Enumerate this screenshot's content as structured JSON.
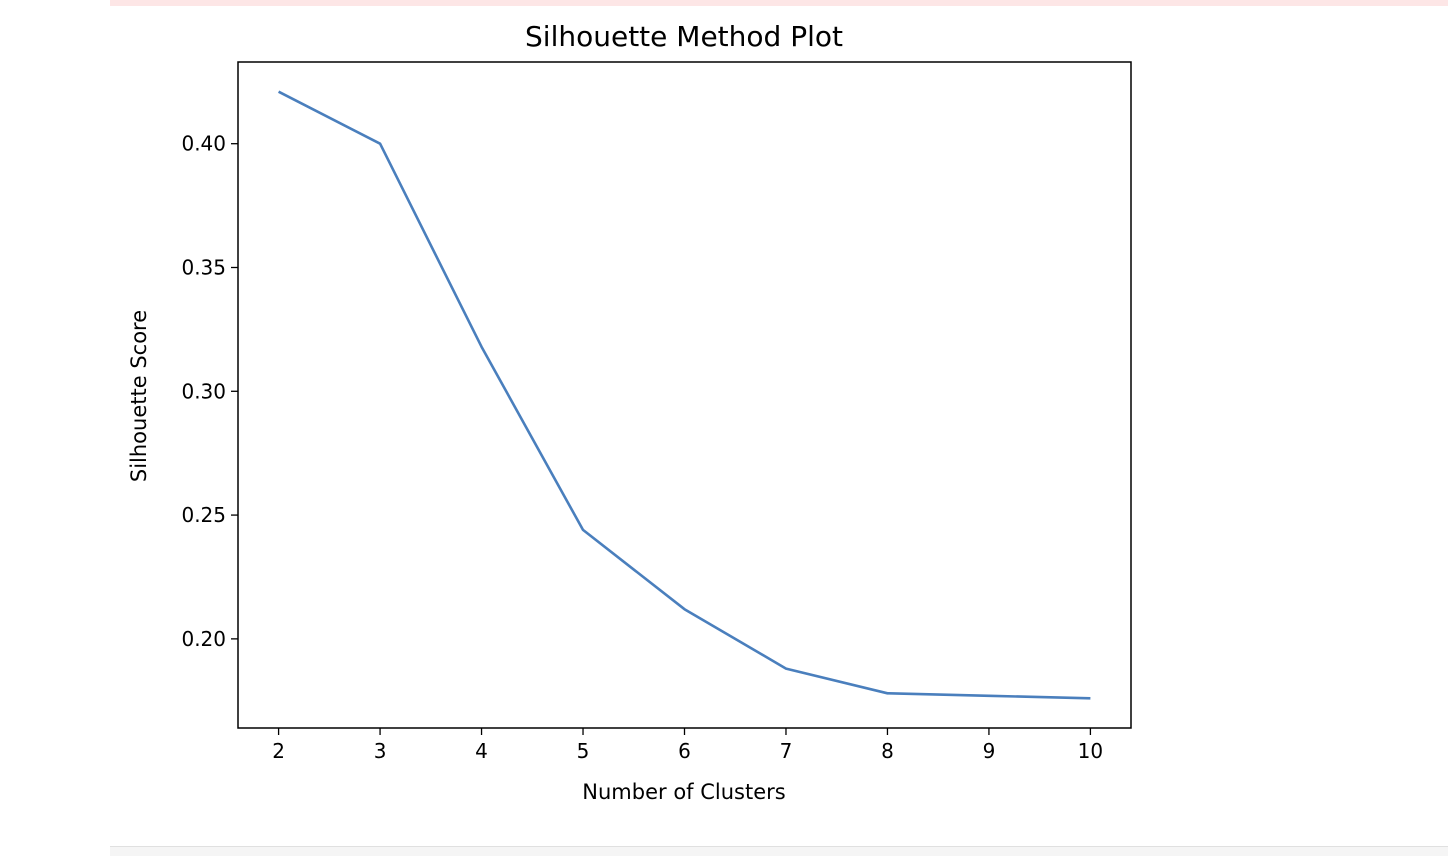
{
  "chart_data": {
    "type": "line",
    "title": "Silhouette Method Plot",
    "xlabel": "Number of Clusters",
    "ylabel": "Silhouette Score",
    "x": [
      2,
      3,
      4,
      5,
      6,
      7,
      8,
      9,
      10
    ],
    "series": [
      {
        "values": [
          0.421,
          0.4,
          0.318,
          0.244,
          0.212,
          0.188,
          0.178,
          0.177,
          0.176
        ]
      }
    ],
    "xticks": [
      "2",
      "3",
      "4",
      "5",
      "6",
      "7",
      "8",
      "9",
      "10"
    ],
    "yticks": [
      "0.20",
      "0.25",
      "0.30",
      "0.35",
      "0.40"
    ],
    "xlim": [
      1.6,
      10.4
    ],
    "ylim": [
      0.164,
      0.433
    ],
    "grid": false,
    "line_color": "#4a7fbd"
  }
}
